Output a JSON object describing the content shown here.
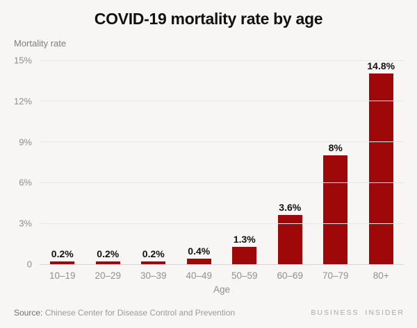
{
  "chart_data": {
    "type": "bar",
    "title": "COVID-19 mortality rate by age",
    "ylabel": "Mortality rate",
    "xlabel": "Age",
    "categories": [
      "10–19",
      "20–29",
      "30–39",
      "40–49",
      "50–59",
      "60–69",
      "70–79",
      "80+"
    ],
    "values": [
      0.2,
      0.2,
      0.2,
      0.4,
      1.3,
      3.6,
      8,
      14.8
    ],
    "bar_labels": [
      "0.2%",
      "0.2%",
      "0.2%",
      "0.4%",
      "1.3%",
      "3.6%",
      "8%",
      "14.8%"
    ],
    "yticks": [
      "15%",
      "12%",
      "9%",
      "6%",
      "3%",
      "0"
    ],
    "ylim": [
      0,
      15
    ],
    "grid": "horizontal-only",
    "legend": "none",
    "bar_color": "#9e0808",
    "background_color": "#f7f6f5",
    "gridline_color": "#e9e6e3"
  },
  "footer": {
    "source_label": "Source:",
    "source_text": " Chinese Center for Disease Control and Prevention",
    "brand": "BUSINESS INSIDER"
  }
}
